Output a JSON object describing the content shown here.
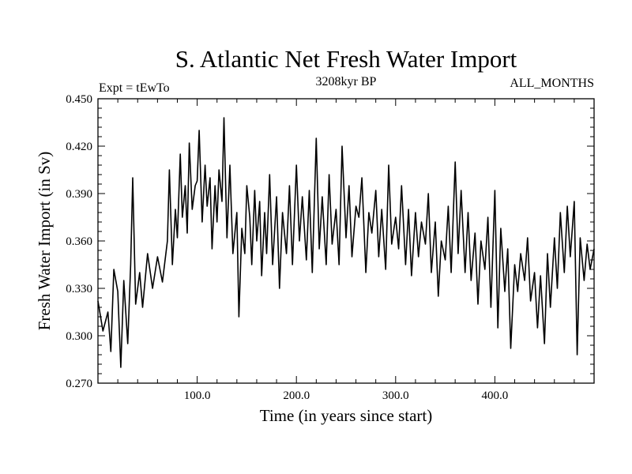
{
  "chart_data": {
    "type": "line",
    "title": "S. Atlantic Net Fresh Water Import",
    "subtitle_left": "Expt = tEwTo",
    "subtitle_center": "3208kyr BP",
    "subtitle_right": "ALL_MONTHS",
    "xlabel": "Time (in years since start)",
    "ylabel": "Fresh Water Import (in Sv)",
    "xlim": [
      0,
      500
    ],
    "ylim": [
      0.27,
      0.45
    ],
    "x_major_ticks": [
      100,
      200,
      300,
      400
    ],
    "x_tick_labels": [
      "100.0",
      "200.0",
      "300.0",
      "400.0"
    ],
    "y_major_ticks": [
      0.27,
      0.3,
      0.33,
      0.36,
      0.39,
      0.42,
      0.45
    ],
    "y_tick_labels": [
      "0.270",
      "0.300",
      "0.330",
      "0.360",
      "0.390",
      "0.420",
      "0.450"
    ],
    "grid": false,
    "series": [
      {
        "name": "net fresh water import",
        "color": "#000000",
        "x": [
          0,
          5,
          10,
          13,
          16,
          20,
          23,
          26,
          30,
          33,
          35,
          38,
          42,
          45,
          50,
          55,
          60,
          65,
          70,
          72,
          75,
          78,
          80,
          83,
          85,
          88,
          90,
          92,
          95,
          98,
          100,
          102,
          105,
          108,
          110,
          113,
          115,
          118,
          120,
          122,
          125,
          127,
          130,
          133,
          136,
          140,
          142,
          145,
          148,
          150,
          153,
          155,
          158,
          160,
          163,
          165,
          168,
          170,
          173,
          176,
          180,
          183,
          186,
          190,
          193,
          196,
          200,
          203,
          206,
          210,
          213,
          216,
          220,
          223,
          226,
          230,
          233,
          236,
          240,
          243,
          246,
          250,
          253,
          256,
          260,
          263,
          266,
          270,
          273,
          276,
          280,
          283,
          286,
          290,
          293,
          296,
          300,
          303,
          306,
          310,
          313,
          316,
          320,
          323,
          326,
          330,
          333,
          336,
          340,
          343,
          346,
          350,
          353,
          356,
          360,
          363,
          366,
          370,
          373,
          376,
          380,
          383,
          386,
          390,
          393,
          396,
          400,
          403,
          406,
          410,
          413,
          416,
          420,
          423,
          426,
          430,
          433,
          436,
          440,
          443,
          446,
          450,
          453,
          456,
          460,
          463,
          466,
          470,
          473,
          476,
          480,
          483,
          486,
          490,
          493,
          496,
          500
        ],
        "y": [
          0.322,
          0.303,
          0.315,
          0.29,
          0.342,
          0.328,
          0.28,
          0.335,
          0.295,
          0.345,
          0.4,
          0.32,
          0.34,
          0.318,
          0.352,
          0.33,
          0.35,
          0.334,
          0.36,
          0.405,
          0.345,
          0.38,
          0.362,
          0.415,
          0.375,
          0.395,
          0.365,
          0.422,
          0.38,
          0.395,
          0.398,
          0.43,
          0.372,
          0.408,
          0.382,
          0.4,
          0.355,
          0.395,
          0.372,
          0.405,
          0.385,
          0.438,
          0.362,
          0.408,
          0.352,
          0.378,
          0.312,
          0.368,
          0.352,
          0.395,
          0.375,
          0.345,
          0.392,
          0.36,
          0.385,
          0.338,
          0.378,
          0.352,
          0.402,
          0.345,
          0.388,
          0.33,
          0.378,
          0.352,
          0.395,
          0.345,
          0.408,
          0.36,
          0.388,
          0.348,
          0.392,
          0.34,
          0.425,
          0.355,
          0.388,
          0.345,
          0.402,
          0.358,
          0.38,
          0.345,
          0.42,
          0.362,
          0.395,
          0.35,
          0.382,
          0.375,
          0.4,
          0.34,
          0.378,
          0.365,
          0.392,
          0.35,
          0.38,
          0.342,
          0.408,
          0.358,
          0.375,
          0.355,
          0.395,
          0.345,
          0.38,
          0.338,
          0.378,
          0.35,
          0.372,
          0.358,
          0.39,
          0.34,
          0.372,
          0.325,
          0.36,
          0.348,
          0.382,
          0.34,
          0.41,
          0.352,
          0.392,
          0.34,
          0.378,
          0.335,
          0.365,
          0.32,
          0.36,
          0.342,
          0.375,
          0.318,
          0.392,
          0.305,
          0.368,
          0.328,
          0.355,
          0.292,
          0.345,
          0.328,
          0.352,
          0.335,
          0.362,
          0.322,
          0.34,
          0.305,
          0.338,
          0.295,
          0.352,
          0.318,
          0.362,
          0.33,
          0.378,
          0.34,
          0.382,
          0.35,
          0.385,
          0.288,
          0.362,
          0.335,
          0.358,
          0.342,
          0.355
        ]
      }
    ]
  }
}
